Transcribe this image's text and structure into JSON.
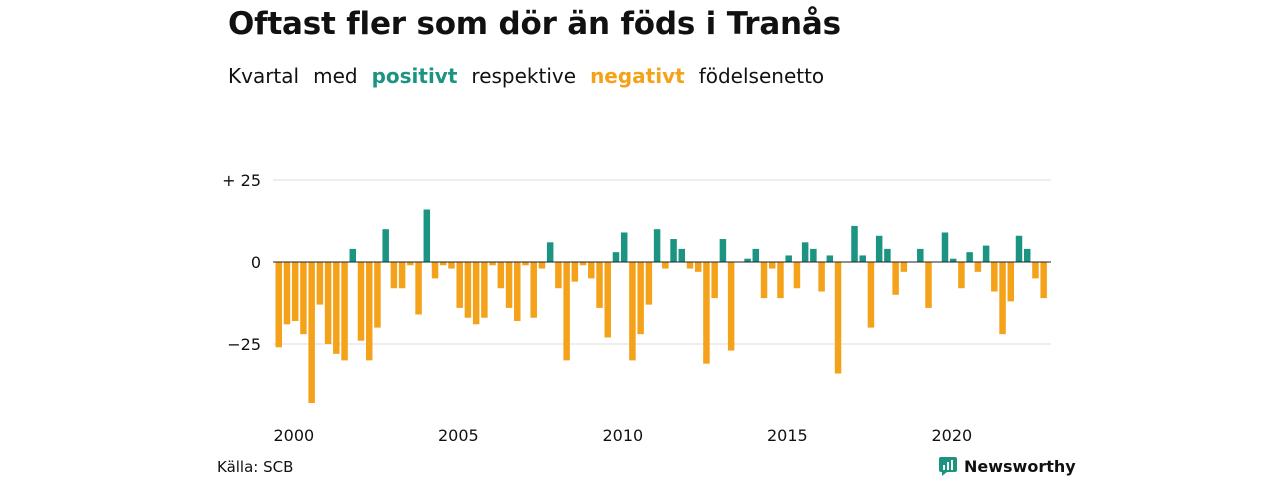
{
  "title": "Oftast fler som dör än föds i Tranås",
  "subtitle": {
    "w1": "Kvartal",
    "w2": "med",
    "positive": "positivt",
    "w3": "respektive",
    "negative": "negativt",
    "w4": "födelsenetto"
  },
  "source": "Källa: SCB",
  "brand": "Newsworthy",
  "colors": {
    "positive": "#1b9482",
    "negative": "#f5a21b",
    "grid": "#dddddd",
    "text": "#111111"
  },
  "chart_data": {
    "type": "bar",
    "title": "Oftast fler som dör än föds i Tranås",
    "xlabel": "",
    "ylabel": "",
    "ylim": [
      -43.5,
      25
    ],
    "y_ticks": [
      25,
      0,
      -25
    ],
    "y_tick_labels": [
      "+ 25",
      "0",
      "−25"
    ],
    "x_ticks": [
      2000,
      2005,
      2010,
      2015,
      2020
    ],
    "grid": true,
    "start": "2000 Q1",
    "series": [
      {
        "values": [
          -26,
          -19,
          -18,
          -22,
          -43,
          -13,
          -25,
          -28,
          -30,
          4,
          -24,
          -30,
          -20,
          10,
          -8,
          -8,
          -1,
          -16,
          16,
          -5,
          -1,
          -2,
          -14,
          -17,
          -19,
          -17,
          -1,
          -8,
          -14,
          -18,
          -1,
          -17,
          -2,
          6,
          -8,
          -30,
          -6,
          -1,
          -5,
          -14,
          -23,
          3,
          9,
          -30,
          -22,
          -13,
          10,
          -2,
          7,
          4,
          -2,
          -3,
          -31,
          -11,
          7,
          -27,
          0,
          1,
          4,
          -11,
          -2,
          -11,
          2,
          -8,
          6,
          4,
          -9,
          2,
          -34,
          0,
          11,
          2,
          -20,
          8,
          4,
          -10,
          -3,
          0,
          4,
          -14,
          0,
          9,
          1,
          -8,
          3,
          -3,
          5,
          -9,
          -22,
          -12,
          8,
          4,
          -5,
          -11
        ]
      }
    ]
  }
}
